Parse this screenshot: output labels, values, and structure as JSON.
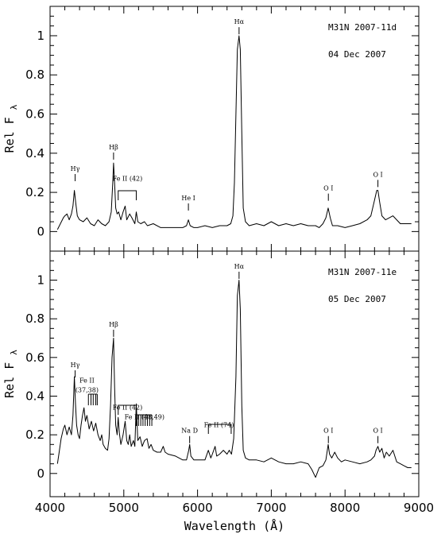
{
  "chart_data": {
    "type": "line",
    "xlabel": "Wavelength (Å)",
    "x_ticks": [
      4000,
      5000,
      6000,
      7000,
      8000,
      9000
    ],
    "xlim": [
      4000,
      9000
    ],
    "panels": [
      {
        "id": "top",
        "object": "M31N 2007-11d",
        "date": "04 Dec 2007",
        "ylabel": "Rel F",
        "ylabel_sub": "λ",
        "ylim": [
          -0.1,
          1.15
        ],
        "y_ticks": [
          0,
          0.2,
          0.4,
          0.6,
          0.8,
          1
        ],
        "y_tick_labels": [
          "0",
          "0.2",
          "0.4",
          "0.6",
          "0.8",
          "1"
        ],
        "series": [
          {
            "x": [
              4100,
              4140,
              4180,
              4200,
              4230,
              4260,
              4290,
              4310,
              4330,
              4350,
              4370,
              4400,
              4450,
              4500,
              4550,
              4600,
              4650,
              4700,
              4750,
              4800,
              4830,
              4850,
              4861,
              4875,
              4890,
              4910,
              4930,
              4960,
              4990,
              5018,
              5040,
              5080,
              5110,
              5150,
              5169,
              5190,
              5230,
              5280,
              5320,
              5400,
              5500,
              5600,
              5700,
              5800,
              5850,
              5876,
              5900,
              5950,
              6000,
              6100,
              6200,
              6300,
              6400,
              6450,
              6480,
              6500,
              6520,
              6540,
              6563,
              6580,
              6600,
              6620,
              6650,
              6700,
              6800,
              6900,
              7000,
              7100,
              7200,
              7300,
              7400,
              7500,
              7600,
              7650,
              7700,
              7740,
              7772,
              7800,
              7830,
              7900,
              8000,
              8100,
              8200,
              8300,
              8350,
              8400,
              8430,
              8446,
              8470,
              8500,
              8550,
              8600,
              8650,
              8700,
              8750,
              8800,
              8850,
              8900
            ],
            "y": [
              0.01,
              0.04,
              0.07,
              0.08,
              0.09,
              0.06,
              0.09,
              0.13,
              0.21,
              0.14,
              0.08,
              0.06,
              0.05,
              0.07,
              0.04,
              0.03,
              0.06,
              0.04,
              0.03,
              0.05,
              0.1,
              0.25,
              0.35,
              0.25,
              0.12,
              0.09,
              0.1,
              0.06,
              0.1,
              0.13,
              0.06,
              0.09,
              0.07,
              0.04,
              0.1,
              0.05,
              0.04,
              0.05,
              0.03,
              0.04,
              0.02,
              0.02,
              0.02,
              0.02,
              0.03,
              0.06,
              0.03,
              0.02,
              0.02,
              0.03,
              0.02,
              0.03,
              0.03,
              0.04,
              0.08,
              0.25,
              0.6,
              0.93,
              1.0,
              0.93,
              0.5,
              0.12,
              0.05,
              0.03,
              0.04,
              0.03,
              0.05,
              0.03,
              0.04,
              0.03,
              0.04,
              0.03,
              0.03,
              0.02,
              0.04,
              0.07,
              0.12,
              0.07,
              0.03,
              0.03,
              0.02,
              0.03,
              0.04,
              0.06,
              0.08,
              0.16,
              0.21,
              0.21,
              0.15,
              0.08,
              0.06,
              0.07,
              0.08,
              0.06,
              0.04,
              0.04,
              0.04,
              0.04
            ]
          }
        ],
        "annotations": [
          {
            "text": "Hα",
            "x": 6563,
            "level": 1.06
          },
          {
            "text": "Hβ",
            "x": 4861,
            "level": 0.42
          },
          {
            "text": "Hγ",
            "x": 4340,
            "level": 0.31
          },
          {
            "text": "Fe II (42)",
            "x": 5050,
            "level": 0.26
          },
          {
            "text": "He I",
            "x": 5876,
            "level": 0.16
          },
          {
            "text": "O I",
            "x": 7774,
            "level": 0.21
          },
          {
            "text": "O I",
            "x": 8446,
            "level": 0.28
          }
        ]
      },
      {
        "id": "bottom",
        "object": "M31N 2007-11e",
        "date": "05 Dec 2007",
        "ylabel": "Rel F",
        "ylabel_sub": "λ",
        "ylim": [
          -0.12,
          1.15
        ],
        "y_ticks": [
          0,
          0.2,
          0.4,
          0.6,
          0.8,
          1
        ],
        "y_tick_labels": [
          "0",
          "0.2",
          "0.4",
          "0.6",
          "0.8",
          "1"
        ],
        "series": [
          {
            "x": [
              4100,
              4120,
              4150,
              4180,
              4200,
              4230,
              4260,
              4290,
              4310,
              4330,
              4345,
              4360,
              4380,
              4400,
              4420,
              4440,
              4460,
              4480,
              4500,
              4530,
              4560,
              4590,
              4620,
              4650,
              4680,
              4700,
              4720,
              4750,
              4780,
              4800,
              4820,
              4840,
              4861,
              4875,
              4890,
              4910,
              4924,
              4940,
              4960,
              4990,
              5018,
              5040,
              5060,
              5080,
              5100,
              5130,
              5150,
              5169,
              5190,
              5220,
              5250,
              5280,
              5316,
              5340,
              5370,
              5400,
              5450,
              5500,
              5534,
              5560,
              5600,
              5700,
              5800,
              5850,
              5880,
              5893,
              5910,
              5950,
              6000,
              6100,
              6147,
              6180,
              6200,
              6238,
              6260,
              6300,
              6350,
              6400,
              6430,
              6460,
              6490,
              6520,
              6540,
              6563,
              6580,
              6600,
              6620,
              6650,
              6700,
              6800,
              6900,
              7000,
              7100,
              7200,
              7300,
              7400,
              7500,
              7550,
              7600,
              7650,
              7700,
              7740,
              7772,
              7790,
              7820,
              7860,
              7900,
              7950,
              8000,
              8100,
              8200,
              8300,
              8350,
              8400,
              8420,
              8446,
              8470,
              8500,
              8530,
              8560,
              8600,
              8650,
              8700,
              8750,
              8800,
              8850,
              8900
            ],
            "y": [
              0.05,
              0.1,
              0.18,
              0.23,
              0.25,
              0.2,
              0.24,
              0.2,
              0.3,
              0.5,
              0.36,
              0.25,
              0.2,
              0.18,
              0.25,
              0.3,
              0.34,
              0.27,
              0.3,
              0.23,
              0.27,
              0.22,
              0.26,
              0.2,
              0.17,
              0.2,
              0.15,
              0.13,
              0.12,
              0.18,
              0.35,
              0.6,
              0.7,
              0.45,
              0.25,
              0.2,
              0.29,
              0.21,
              0.15,
              0.2,
              0.27,
              0.17,
              0.15,
              0.2,
              0.14,
              0.17,
              0.14,
              0.36,
              0.17,
              0.19,
              0.14,
              0.17,
              0.18,
              0.13,
              0.15,
              0.12,
              0.11,
              0.11,
              0.14,
              0.11,
              0.1,
              0.09,
              0.07,
              0.07,
              0.12,
              0.15,
              0.09,
              0.07,
              0.07,
              0.07,
              0.12,
              0.08,
              0.1,
              0.14,
              0.09,
              0.1,
              0.12,
              0.1,
              0.12,
              0.1,
              0.18,
              0.5,
              0.92,
              1.0,
              0.85,
              0.35,
              0.12,
              0.08,
              0.07,
              0.07,
              0.06,
              0.08,
              0.06,
              0.05,
              0.05,
              0.06,
              0.05,
              0.02,
              -0.02,
              0.03,
              0.04,
              0.07,
              0.15,
              0.1,
              0.08,
              0.11,
              0.08,
              0.06,
              0.07,
              0.06,
              0.05,
              0.06,
              0.07,
              0.09,
              0.12,
              0.14,
              0.11,
              0.13,
              0.08,
              0.11,
              0.09,
              0.12,
              0.06,
              0.05,
              0.04,
              0.03,
              0.03
            ]
          }
        ],
        "annotations": [
          {
            "text": "Hα",
            "x": 6563,
            "level": 1.06
          },
          {
            "text": "Hβ",
            "x": 4861,
            "level": 0.76
          },
          {
            "text": "Hγ",
            "x": 4340,
            "level": 0.55
          },
          {
            "text": "Fe II",
            "x": 4500,
            "level": 0.47
          },
          {
            "text": "(37,38)",
            "x": 4500,
            "level": 0.42
          },
          {
            "text": "Fe II (42)",
            "x": 5050,
            "level": 0.33
          },
          {
            "text": "Fe II (48,49)",
            "x": 5280,
            "level": 0.28
          },
          {
            "text": "Na D",
            "x": 5893,
            "level": 0.21
          },
          {
            "text": "Fe II (74)",
            "x": 6290,
            "level": 0.24
          },
          {
            "text": "O I",
            "x": 7774,
            "level": 0.21
          },
          {
            "text": "O I",
            "x": 8446,
            "level": 0.21
          }
        ]
      }
    ]
  }
}
